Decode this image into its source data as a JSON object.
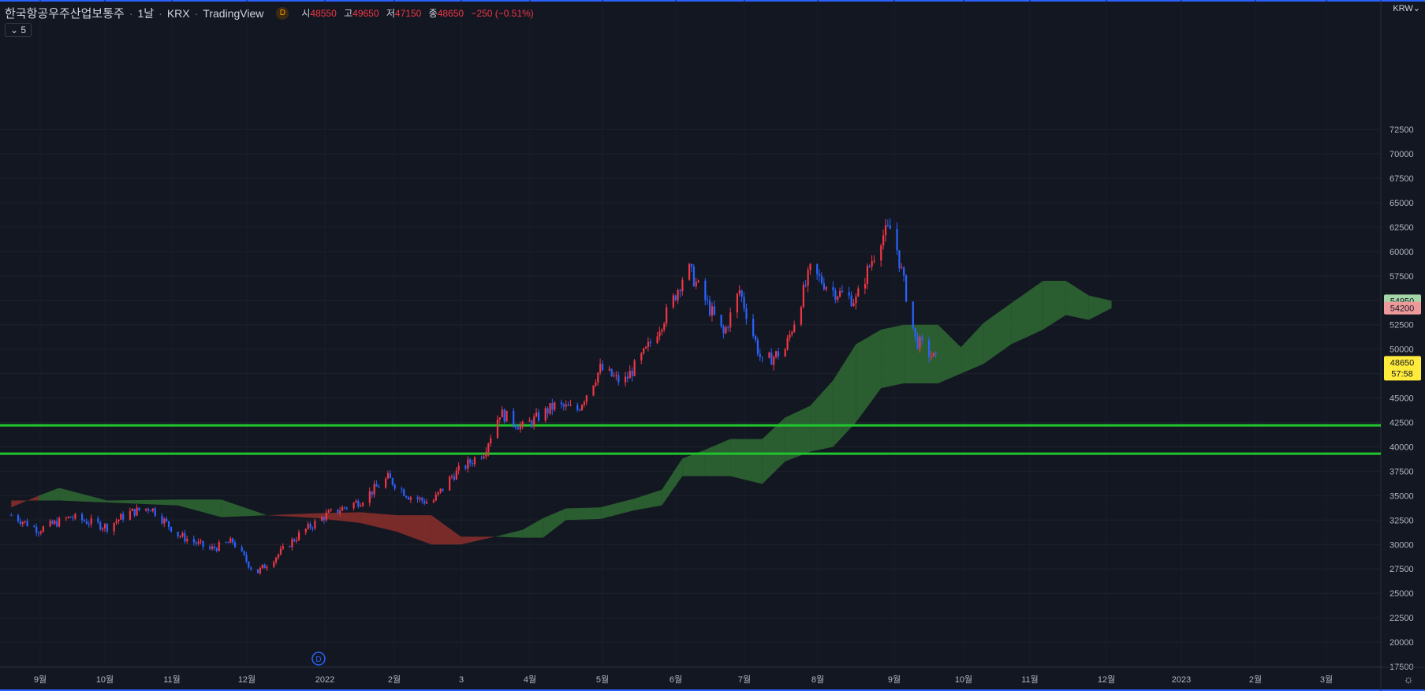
{
  "header": {
    "symbol": "한국항공우주산업보통주",
    "interval": "1날",
    "exchange": "KRX",
    "source": "TradingView",
    "badge": "D",
    "open_label": "시",
    "open": "48550",
    "high_label": "고",
    "high": "49650",
    "low_label": "저",
    "low": "47150",
    "close_label": "종",
    "close": "48650",
    "change": "−250 (−0.51%)"
  },
  "indicator_toggle": "5",
  "currency": "KRW",
  "colors": {
    "background": "#131722",
    "up": "#f23645",
    "down": "#2962ff",
    "cloud_bull": "#2f6a33",
    "cloud_bear": "#8c2f2c",
    "hline": "#22c42e"
  },
  "chart_data": {
    "type": "candlestick",
    "ylim": [
      17500,
      75000
    ],
    "y_ticks": [
      17500,
      20000,
      22500,
      25000,
      27500,
      30000,
      32500,
      35000,
      37500,
      40000,
      42500,
      45000,
      47500,
      50000,
      52500,
      55000,
      57500,
      60000,
      62500,
      65000,
      67500,
      70000,
      72500
    ],
    "x_labels": [
      "9월",
      "10월",
      "11월",
      "12월",
      "2022",
      "2월",
      "3",
      "4월",
      "5월",
      "6월",
      "7월",
      "8월",
      "9월",
      "10월",
      "11월",
      "12월",
      "2023",
      "2월",
      "3월"
    ],
    "price_path": [
      [
        "2021-08-20",
        33000
      ],
      [
        "2021-09-01",
        31500
      ],
      [
        "2021-09-15",
        32800
      ],
      [
        "2021-10-01",
        31800
      ],
      [
        "2021-10-10",
        33200
      ],
      [
        "2021-10-20",
        33800
      ],
      [
        "2021-11-01",
        31000
      ],
      [
        "2021-11-15",
        29500
      ],
      [
        "2021-11-25",
        30300
      ],
      [
        "2021-12-05",
        27000
      ],
      [
        "2021-12-15",
        29000
      ],
      [
        "2021-12-25",
        31200
      ],
      [
        "2022-01-05",
        33000
      ],
      [
        "2022-01-20",
        34500
      ],
      [
        "2022-02-01",
        36800
      ],
      [
        "2022-02-10",
        35000
      ],
      [
        "2022-02-20",
        34200
      ],
      [
        "2022-03-01",
        37000
      ],
      [
        "2022-03-15",
        39500
      ],
      [
        "2022-03-22",
        43500
      ],
      [
        "2022-04-01",
        42000
      ],
      [
        "2022-04-15",
        44200
      ],
      [
        "2022-04-25",
        43800
      ],
      [
        "2022-05-05",
        48000
      ],
      [
        "2022-05-15",
        46500
      ],
      [
        "2022-05-25",
        49800
      ],
      [
        "2022-06-05",
        54500
      ],
      [
        "2022-06-12",
        58500
      ],
      [
        "2022-06-20",
        55000
      ],
      [
        "2022-06-28",
        51500
      ],
      [
        "2022-07-05",
        56000
      ],
      [
        "2022-07-15",
        48500
      ],
      [
        "2022-07-25",
        50000
      ],
      [
        "2022-08-05",
        58000
      ],
      [
        "2022-08-15",
        56000
      ],
      [
        "2022-08-25",
        55000
      ],
      [
        "2022-09-05",
        61500
      ],
      [
        "2022-09-10",
        62500
      ],
      [
        "2022-09-20",
        51000
      ],
      [
        "2022-09-30",
        48650
      ]
    ],
    "last_price": "48650",
    "countdown": "57:58",
    "cloud_lead1_label": "54950",
    "cloud_lead2_label": "54200",
    "horizontal_lines": [
      42200,
      39300
    ],
    "cloud": [
      [
        "2021-08-20",
        33800,
        34500
      ],
      [
        "2021-09-01",
        35000,
        34500
      ],
      [
        "2021-09-10",
        35800,
        34500
      ],
      [
        "2021-10-01",
        34500,
        34300
      ],
      [
        "2021-11-01",
        34600,
        34000
      ],
      [
        "2021-11-20",
        34600,
        32800
      ],
      [
        "2021-12-10",
        33000,
        33000
      ],
      [
        "2022-01-01",
        32700,
        33200
      ],
      [
        "2022-01-20",
        32200,
        33300
      ],
      [
        "2022-02-05",
        31300,
        33000
      ],
      [
        "2022-02-20",
        30000,
        33000
      ],
      [
        "2022-03-05",
        30000,
        30800
      ],
      [
        "2022-03-20",
        30800,
        30800
      ],
      [
        "2022-04-01",
        31500,
        30700
      ],
      [
        "2022-04-10",
        32700,
        30700
      ],
      [
        "2022-04-20",
        33700,
        32500
      ],
      [
        "2022-05-05",
        33800,
        32600
      ],
      [
        "2022-05-20",
        34700,
        33500
      ],
      [
        "2022-06-01",
        35600,
        34000
      ],
      [
        "2022-06-10",
        38800,
        37000
      ],
      [
        "2022-06-20",
        39700,
        37000
      ],
      [
        "2022-07-01",
        40800,
        37000
      ],
      [
        "2022-07-15",
        40800,
        36200
      ],
      [
        "2022-07-25",
        43000,
        38500
      ],
      [
        "2022-08-05",
        44200,
        39500
      ],
      [
        "2022-08-15",
        46800,
        40000
      ],
      [
        "2022-08-25",
        50500,
        42500
      ],
      [
        "2022-09-05",
        52000,
        46000
      ],
      [
        "2022-09-15",
        52500,
        46500
      ],
      [
        "2022-09-30",
        52500,
        46500
      ],
      [
        "2022-10-10",
        50200,
        47500
      ],
      [
        "2022-10-20",
        52700,
        48500
      ],
      [
        "2022-11-01",
        54700,
        50500
      ],
      [
        "2022-11-15",
        57000,
        52000
      ],
      [
        "2022-11-25",
        57000,
        53500
      ],
      [
        "2022-12-05",
        55500,
        53000
      ],
      [
        "2022-12-15",
        54950,
        54200
      ]
    ]
  }
}
